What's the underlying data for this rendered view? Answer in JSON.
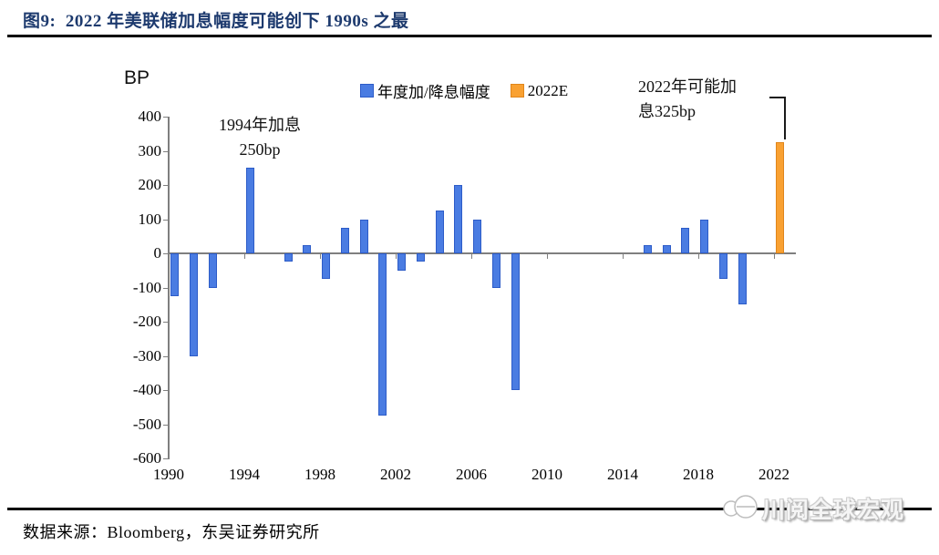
{
  "header": {
    "title": "图9:  2022 年美联储加息幅度可能创下 1990s 之最"
  },
  "chart_data": {
    "type": "bar",
    "title": "2022 年美联储加息幅度可能创下 1990s 之最",
    "unit_label": "BP",
    "ylabel": "BP",
    "xlabel": "",
    "ylim": [
      -600,
      400
    ],
    "grid": false,
    "legend_position": "top-center",
    "y_ticks": [
      400,
      300,
      200,
      100,
      0,
      -100,
      -200,
      -300,
      -400,
      -500,
      -600
    ],
    "x_tick_years": [
      1990,
      1994,
      1998,
      2002,
      2006,
      2010,
      2014,
      2018,
      2022
    ],
    "series": [
      {
        "name": "年度加/降息幅度",
        "color": "#4a7ce2",
        "border": "#2d5cc8",
        "points": [
          [
            1990,
            -125
          ],
          [
            1991,
            -300
          ],
          [
            1992,
            -100
          ],
          [
            1993,
            0
          ],
          [
            1994,
            250
          ],
          [
            1995,
            0
          ],
          [
            1996,
            -25
          ],
          [
            1997,
            25
          ],
          [
            1998,
            -75
          ],
          [
            1999,
            75
          ],
          [
            2000,
            100
          ],
          [
            2001,
            -475
          ],
          [
            2002,
            -50
          ],
          [
            2003,
            -25
          ],
          [
            2004,
            125
          ],
          [
            2005,
            200
          ],
          [
            2006,
            100
          ],
          [
            2007,
            -100
          ],
          [
            2008,
            -400
          ],
          [
            2009,
            0
          ],
          [
            2010,
            0
          ],
          [
            2011,
            0
          ],
          [
            2012,
            0
          ],
          [
            2013,
            0
          ],
          [
            2014,
            0
          ],
          [
            2015,
            25
          ],
          [
            2016,
            25
          ],
          [
            2017,
            75
          ],
          [
            2018,
            100
          ],
          [
            2019,
            -75
          ],
          [
            2020,
            -150
          ],
          [
            2021,
            0
          ]
        ]
      },
      {
        "name": "2022E",
        "color": "#f9a132",
        "border": "#e0861c",
        "points": [
          [
            2022,
            325
          ]
        ]
      }
    ],
    "annotations": [
      {
        "id": "ann-1994",
        "lines": [
          "1994年加息",
          "250bp"
        ]
      },
      {
        "id": "ann-2022",
        "lines": [
          "2022年可能加",
          "息325bp"
        ]
      }
    ]
  },
  "footer": {
    "source": "数据来源：Bloomberg，东吴证券研究所",
    "watermark": "川阅全球宏观"
  }
}
